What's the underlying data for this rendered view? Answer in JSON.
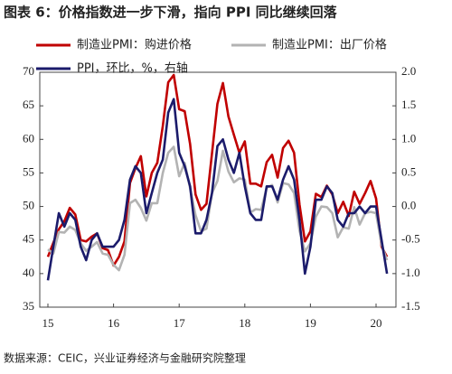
{
  "chart_data": {
    "type": "line",
    "title": "图表 6：价格指数进一步下滑，指向 PPI 同比继续回落",
    "source": "数据来源：CEIC，兴业证券经济与金融研究院整理",
    "categories": [
      "15",
      null,
      null,
      null,
      null,
      null,
      null,
      null,
      null,
      null,
      null,
      null,
      "16",
      null,
      null,
      null,
      null,
      null,
      null,
      null,
      null,
      null,
      null,
      null,
      "17",
      null,
      null,
      null,
      null,
      null,
      null,
      null,
      null,
      null,
      null,
      null,
      "18",
      null,
      null,
      null,
      null,
      null,
      null,
      null,
      null,
      null,
      null,
      null,
      "19",
      null,
      null,
      null,
      null,
      null,
      null,
      null,
      null,
      null,
      null,
      null,
      "20",
      null,
      null
    ],
    "series": [
      {
        "name": "制造业PMI：购进价格",
        "color": "#c00000",
        "axis": "y",
        "values": [
          42.5,
          44.6,
          46.6,
          47.8,
          49.8,
          48.8,
          45.0,
          44.8,
          45.5,
          46.0,
          43.8,
          43.5,
          41.2,
          42.5,
          44.8,
          53.5,
          55.7,
          57.5,
          51.5,
          55.0,
          56.5,
          62.0,
          68.5,
          69.6,
          64.5,
          64.2,
          59.3,
          51.8,
          49.5,
          50.4,
          57.9,
          65.3,
          68.4,
          63.4,
          60.7,
          58.0,
          59.7,
          53.4,
          53.4,
          53.0,
          56.6,
          57.7,
          54.3,
          58.7,
          59.8,
          58.0,
          50.3,
          44.8,
          46.3,
          51.9,
          51.4,
          53.1,
          51.8,
          49.0,
          50.7,
          48.6,
          52.2,
          50.4,
          52.0,
          53.8,
          51.2,
          44.0,
          42.5
        ]
      },
      {
        "name": "制造业PMI：出厂价格",
        "color": "#b3b3b3",
        "axis": "y",
        "values": [
          43.6,
          43.0,
          46.2,
          46.1,
          47.0,
          46.5,
          44.5,
          43.4,
          44.0,
          44.7,
          43.0,
          42.8,
          41.3,
          40.5,
          42.8,
          50.5,
          51.0,
          49.8,
          47.9,
          50.5,
          50.5,
          55.0,
          58.0,
          58.9,
          54.5,
          56.5,
          52.7,
          48.7,
          46.3,
          46.7,
          52.0,
          53.8,
          58.3,
          55.2,
          53.6,
          54.2,
          54.0,
          49.1,
          49.6,
          49.5,
          52.8,
          53.2,
          50.6,
          53.5,
          53.3,
          52.0,
          46.4,
          43.3,
          44.5,
          48.5,
          50.0,
          49.9,
          49.0,
          45.4,
          46.9,
          46.7,
          49.9,
          47.3,
          49.0,
          49.2,
          49.0,
          44.3,
          42.0
        ]
      },
      {
        "name": "PPI，环比，%，右轴",
        "color": "#1b1b6b",
        "axis": "y2",
        "values": [
          -1.1,
          -0.6,
          -0.1,
          -0.3,
          -0.1,
          -0.2,
          -0.6,
          -0.8,
          -0.5,
          -0.4,
          -0.6,
          -0.6,
          -0.6,
          -0.5,
          -0.2,
          0.4,
          0.6,
          0.5,
          -0.1,
          0.2,
          0.5,
          0.7,
          1.4,
          1.6,
          0.8,
          0.6,
          0.3,
          -0.4,
          -0.4,
          -0.2,
          0.2,
          0.9,
          1.0,
          0.7,
          0.5,
          0.8,
          0.3,
          -0.1,
          -0.2,
          -0.2,
          0.3,
          0.3,
          0.1,
          0.4,
          0.6,
          0.4,
          -0.2,
          -1.0,
          -0.6,
          0.1,
          0.1,
          0.3,
          0.2,
          -0.2,
          -0.3,
          -0.1,
          -0.1,
          0.0,
          -0.1,
          0.0,
          0.0,
          -0.5,
          -1.0
        ]
      }
    ],
    "ylim": [
      35,
      70
    ],
    "yticks": [
      35,
      40,
      45,
      50,
      55,
      60,
      65,
      70
    ],
    "y2lim": [
      -1.5,
      2
    ],
    "y2ticks": [
      -1.5,
      {
        "value": -1,
        "label": "-1.0"
      },
      -0.5,
      {
        "value": 0,
        "label": "0.0"
      },
      0.5,
      {
        "value": 1,
        "label": "1.0"
      },
      1.5,
      {
        "value": 2,
        "label": "2.0"
      }
    ],
    "legend": "top",
    "grid": false
  }
}
